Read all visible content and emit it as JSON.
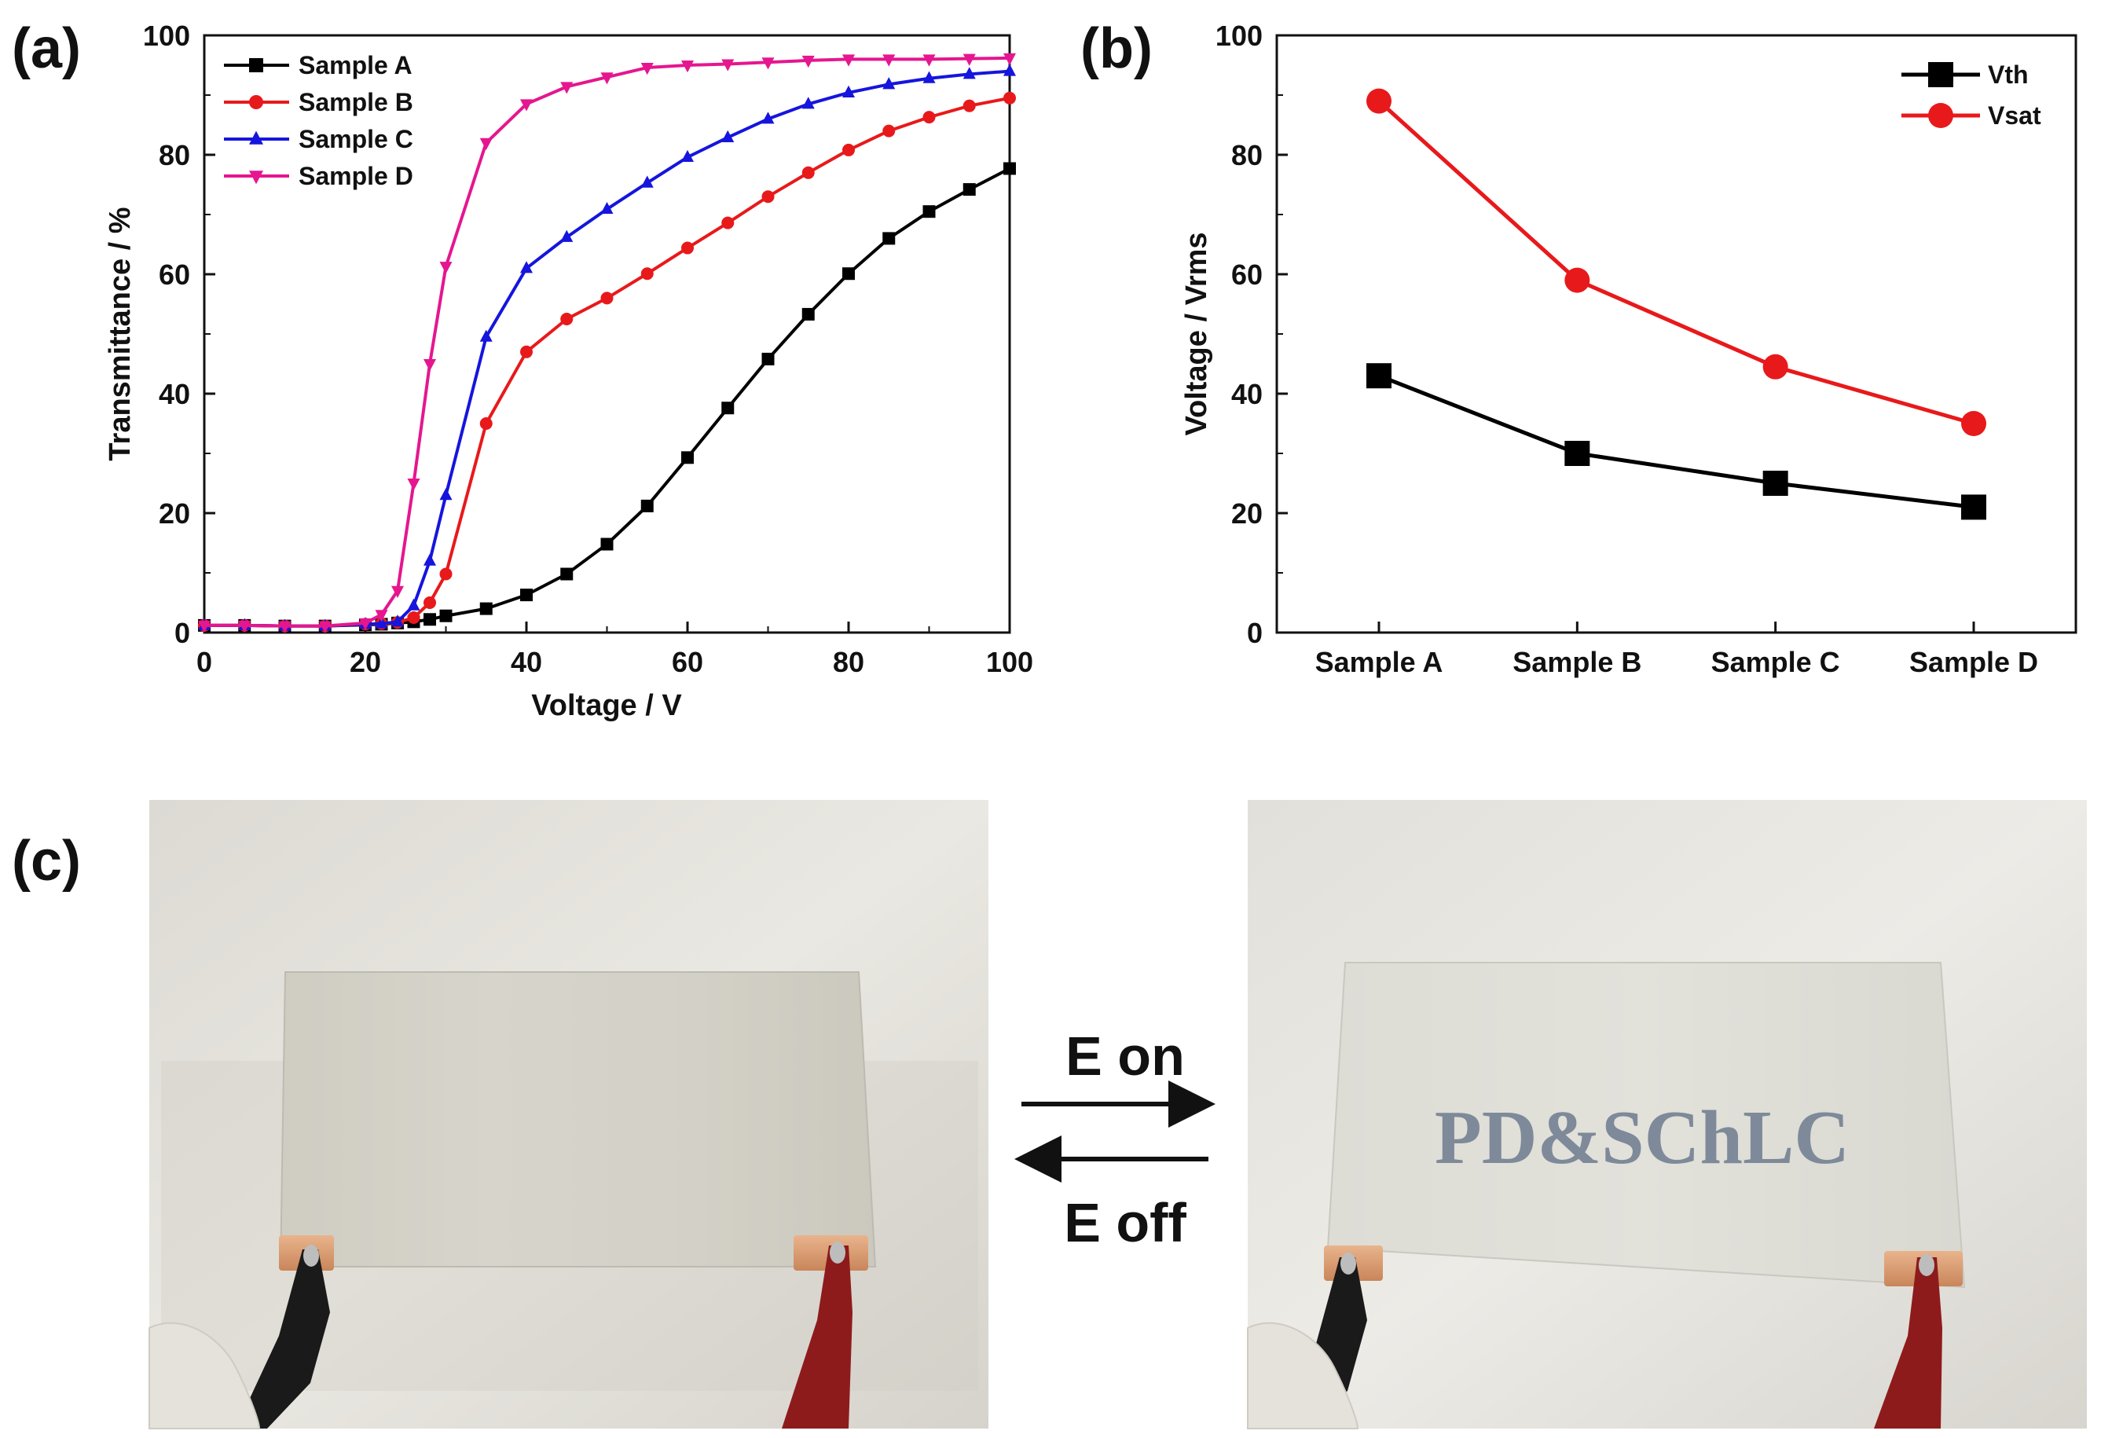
{
  "panel_labels": {
    "a": "(a)",
    "b": "(b)",
    "c": "(c)"
  },
  "chart_data": [
    {
      "type": "line",
      "panel": "(a)",
      "xlabel": "Voltage / V",
      "ylabel": "Transmittance / %",
      "xlim": [
        0,
        100
      ],
      "ylim": [
        0,
        100
      ],
      "xticks": [
        0,
        20,
        40,
        60,
        80,
        100
      ],
      "yticks": [
        0,
        20,
        40,
        60,
        80,
        100
      ],
      "legend_position": "top-left",
      "x": [
        0,
        5,
        10,
        15,
        20,
        22,
        24,
        26,
        28,
        30,
        35,
        40,
        45,
        50,
        55,
        60,
        65,
        70,
        75,
        80,
        85,
        90,
        95,
        100
      ],
      "series": [
        {
          "name": "Sample A",
          "color": "#000000",
          "marker": "square",
          "values": [
            1.2,
            1.2,
            1.1,
            1.1,
            1.3,
            1.4,
            1.6,
            1.8,
            2.2,
            2.8,
            4.0,
            6.3,
            9.8,
            14.8,
            21.2,
            29.3,
            37.6,
            45.8,
            53.3,
            60.1,
            66.0,
            70.5,
            74.2,
            77.7
          ]
        },
        {
          "name": "Sample B",
          "color": "#e8191b",
          "marker": "circle",
          "values": [
            1.2,
            1.2,
            1.1,
            1.1,
            1.4,
            1.5,
            1.7,
            2.5,
            5.0,
            9.8,
            35.0,
            47.0,
            52.5,
            56.0,
            60.1,
            64.4,
            68.6,
            73.0,
            77.0,
            80.8,
            84.0,
            86.3,
            88.2,
            89.5
          ]
        },
        {
          "name": "Sample C",
          "color": "#1515dd",
          "marker": "triangle-up",
          "values": [
            1.2,
            1.2,
            1.1,
            1.1,
            1.4,
            1.5,
            1.8,
            4.5,
            12.0,
            23.0,
            49.5,
            61.0,
            66.2,
            70.9,
            75.3,
            79.6,
            82.9,
            86.0,
            88.5,
            90.4,
            91.8,
            92.8,
            93.5,
            94.0
          ]
        },
        {
          "name": "Sample D",
          "color": "#e5168f",
          "marker": "triangle-down",
          "values": [
            1.2,
            1.2,
            1.1,
            1.1,
            1.6,
            3.0,
            7.0,
            25.0,
            45.0,
            61.3,
            82.0,
            88.5,
            91.4,
            93.0,
            94.6,
            95.0,
            95.2,
            95.5,
            95.8,
            96.0,
            96.0,
            96.0,
            96.1,
            96.2
          ]
        }
      ]
    },
    {
      "type": "line",
      "panel": "(b)",
      "xlabel": "",
      "ylabel": "Voltage / Vrms",
      "ylim": [
        0,
        100
      ],
      "yticks": [
        0,
        20,
        40,
        60,
        80,
        100
      ],
      "legend_position": "top-right",
      "categories": [
        "Sample A",
        "Sample B",
        "Sample C",
        "Sample D"
      ],
      "series": [
        {
          "name": "Vth",
          "color": "#000000",
          "marker": "square",
          "values": [
            43,
            30,
            25,
            21
          ]
        },
        {
          "name": "Vsat",
          "color": "#e8191b",
          "marker": "circle",
          "values": [
            89,
            59,
            44.5,
            35
          ]
        }
      ]
    }
  ],
  "photo_panel": {
    "arrow_top_label": "E on",
    "arrow_bottom_label": "E off",
    "overlay_text": "PD&SChLC",
    "overlay_color": "#7e8a99"
  }
}
